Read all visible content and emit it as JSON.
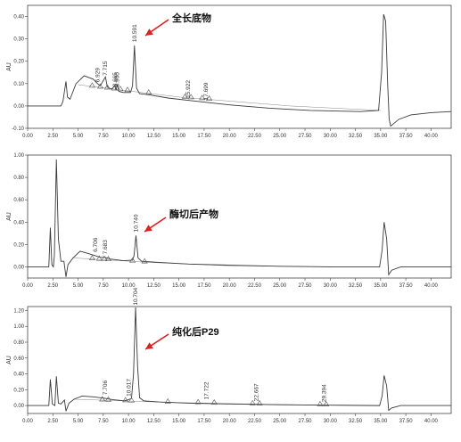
{
  "chart_data": [
    {
      "type": "line",
      "ylabel": "AU",
      "annotation": "全长底物",
      "xlim": [
        0,
        42
      ],
      "ylim": [
        -0.1,
        0.45
      ],
      "xticks": [
        "0.00",
        "2.50",
        "5.00",
        "7.50",
        "10.00",
        "12.50",
        "15.00",
        "17.50",
        "20.00",
        "22.50",
        "25.00",
        "27.50",
        "30.00",
        "32.50",
        "35.00",
        "37.50",
        "40.00"
      ],
      "yticks": [
        "-0.10",
        "0.00",
        "0.10",
        "0.20",
        "0.30",
        "0.40"
      ],
      "peak_labels": [
        {
          "text": "6.929",
          "x": 6.929,
          "y": 0.09
        },
        {
          "text": "7.715",
          "x": 7.715,
          "y": 0.12
        },
        {
          "text": "8.665",
          "x": 8.665,
          "y": 0.07
        },
        {
          "text": "8.900",
          "x": 8.9,
          "y": 0.07
        },
        {
          "text": "10.591",
          "x": 10.591,
          "y": 0.27
        },
        {
          "text": "15.922",
          "x": 15.922,
          "y": 0.02
        },
        {
          "text": "17.699",
          "x": 17.699,
          "y": 0.01
        }
      ],
      "triangles": [
        6.4,
        7.2,
        7.9,
        8.6,
        9.2,
        9.9,
        12.0,
        15.6,
        16.2,
        17.3,
        18.0
      ],
      "trace": [
        [
          0,
          0
        ],
        [
          3.3,
          0
        ],
        [
          3.5,
          0.02
        ],
        [
          3.8,
          0.11
        ],
        [
          3.95,
          0.04
        ],
        [
          4.2,
          0.03
        ],
        [
          4.8,
          0.1
        ],
        [
          5.6,
          0.135
        ],
        [
          6.5,
          0.12
        ],
        [
          6.929,
          0.1
        ],
        [
          7.2,
          0.09
        ],
        [
          7.715,
          0.13
        ],
        [
          7.9,
          0.085
        ],
        [
          8.3,
          0.075
        ],
        [
          8.665,
          0.09
        ],
        [
          8.75,
          0.07
        ],
        [
          8.9,
          0.095
        ],
        [
          9.05,
          0.065
        ],
        [
          9.5,
          0.06
        ],
        [
          10.2,
          0.06
        ],
        [
          10.4,
          0.09
        ],
        [
          10.591,
          0.27
        ],
        [
          10.8,
          0.08
        ],
        [
          11.1,
          0.055
        ],
        [
          12,
          0.05
        ],
        [
          14,
          0.035
        ],
        [
          16,
          0.025
        ],
        [
          18,
          0.015
        ],
        [
          20,
          0.005
        ],
        [
          24,
          -0.01
        ],
        [
          28,
          -0.02
        ],
        [
          33,
          -0.025
        ],
        [
          34.8,
          -0.02
        ],
        [
          35.1,
          0.15
        ],
        [
          35.3,
          0.41
        ],
        [
          35.5,
          0.38
        ],
        [
          35.7,
          0.1
        ],
        [
          35.85,
          -0.06
        ],
        [
          36.0,
          -0.09
        ],
        [
          36.8,
          -0.06
        ],
        [
          38,
          -0.04
        ],
        [
          40,
          -0.03
        ],
        [
          42,
          -0.025
        ]
      ],
      "baseline": [
        [
          5.0,
          0.095
        ],
        [
          15,
          0.04
        ],
        [
          26,
          0.0
        ],
        [
          35,
          -0.02
        ]
      ]
    },
    {
      "type": "line",
      "ylabel": "AU",
      "annotation": "酶切后产物",
      "xlim": [
        0,
        42
      ],
      "ylim": [
        -0.1,
        1.0
      ],
      "xticks": [
        "0.00",
        "2.50",
        "5.00",
        "7.50",
        "10.00",
        "12.50",
        "15.00",
        "17.50",
        "20.00",
        "22.50",
        "25.00",
        "27.50",
        "30.00",
        "32.50",
        "35.00",
        "37.50",
        "40.00"
      ],
      "yticks": [
        "0.00",
        "0.20",
        "0.40",
        "0.60",
        "0.80",
        "1.00"
      ],
      "peak_labels": [
        {
          "text": "6.706",
          "x": 6.706,
          "y": 0.1
        },
        {
          "text": "7.683",
          "x": 7.683,
          "y": 0.08
        },
        {
          "text": "10.740",
          "x": 10.74,
          "y": 0.28
        }
      ],
      "triangles": [
        6.4,
        7.1,
        7.6,
        8.0,
        10.4,
        11.6
      ],
      "trace": [
        [
          0,
          0
        ],
        [
          2.1,
          0
        ],
        [
          2.25,
          0.35
        ],
        [
          2.4,
          0.02
        ],
        [
          2.55,
          0
        ],
        [
          2.65,
          0.1
        ],
        [
          2.85,
          0.96
        ],
        [
          3.05,
          0.25
        ],
        [
          3.3,
          0.05
        ],
        [
          3.6,
          0.05
        ],
        [
          3.8,
          -0.09
        ],
        [
          4.0,
          0.02
        ],
        [
          4.5,
          0.08
        ],
        [
          5.2,
          0.14
        ],
        [
          6.0,
          0.12
        ],
        [
          6.706,
          0.1
        ],
        [
          7.2,
          0.085
        ],
        [
          7.683,
          0.085
        ],
        [
          8.2,
          0.07
        ],
        [
          9.5,
          0.055
        ],
        [
          10.4,
          0.06
        ],
        [
          10.55,
          0.1
        ],
        [
          10.74,
          0.28
        ],
        [
          10.95,
          0.08
        ],
        [
          11.3,
          0.05
        ],
        [
          13,
          0.04
        ],
        [
          16,
          0.025
        ],
        [
          20,
          0.015
        ],
        [
          25,
          0.005
        ],
        [
          30,
          0.0
        ],
        [
          34.9,
          0.0
        ],
        [
          35.15,
          0.15
        ],
        [
          35.35,
          0.4
        ],
        [
          35.6,
          0.25
        ],
        [
          35.8,
          -0.07
        ],
        [
          36.1,
          -0.03
        ],
        [
          37,
          0.0
        ],
        [
          42,
          0.0
        ]
      ],
      "baseline": [
        [
          4.5,
          0.08
        ],
        [
          12,
          0.04
        ],
        [
          20,
          0.01
        ],
        [
          30,
          0.0
        ]
      ]
    },
    {
      "type": "line",
      "ylabel": "AU",
      "annotation": "纯化后P29",
      "xlim": [
        0,
        42
      ],
      "ylim": [
        -0.1,
        1.25
      ],
      "xticks": [
        "0.00",
        "2.50",
        "5.00",
        "7.50",
        "10.00",
        "12.50",
        "15.00",
        "17.50",
        "20.00",
        "22.50",
        "25.00",
        "27.50",
        "30.00",
        "32.50",
        "35.00",
        "37.50",
        "40.00"
      ],
      "yticks": [
        "0.00",
        "0.20",
        "0.40",
        "0.60",
        "0.80",
        "1.00",
        "1.20"
      ],
      "peak_labels": [
        {
          "text": "7.706",
          "x": 7.706,
          "y": 0.09
        },
        {
          "text": "10.017",
          "x": 10.017,
          "y": 0.07
        },
        {
          "text": "10.704",
          "x": 10.704,
          "y": 1.22
        },
        {
          "text": "17.722",
          "x": 17.722,
          "y": 0.03
        },
        {
          "text": "22.667",
          "x": 22.667,
          "y": 0.01
        },
        {
          "text": "29.394",
          "x": 29.394,
          "y": 0.0
        }
      ],
      "triangles": [
        7.4,
        8.0,
        9.7,
        10.3,
        13.9,
        16.9,
        18.5,
        22.3,
        23.0,
        29.0,
        29.6
      ],
      "trace": [
        [
          0,
          0
        ],
        [
          2.1,
          0
        ],
        [
          2.25,
          0.33
        ],
        [
          2.45,
          0.02
        ],
        [
          2.7,
          0.0
        ],
        [
          2.85,
          0.37
        ],
        [
          3.05,
          0.03
        ],
        [
          3.3,
          0.02
        ],
        [
          3.65,
          0.07
        ],
        [
          3.8,
          -0.07
        ],
        [
          4.1,
          0.03
        ],
        [
          4.6,
          0.08
        ],
        [
          5.4,
          0.12
        ],
        [
          6.5,
          0.11
        ],
        [
          7.706,
          0.09
        ],
        [
          8.4,
          0.075
        ],
        [
          9.6,
          0.06
        ],
        [
          10.017,
          0.075
        ],
        [
          10.3,
          0.09
        ],
        [
          10.5,
          0.4
        ],
        [
          10.704,
          1.24
        ],
        [
          10.9,
          0.5
        ],
        [
          11.1,
          0.1
        ],
        [
          11.5,
          0.06
        ],
        [
          13,
          0.045
        ],
        [
          16,
          0.03
        ],
        [
          20,
          0.02
        ],
        [
          25,
          0.01
        ],
        [
          30,
          0.005
        ],
        [
          34.9,
          0.0
        ],
        [
          35.15,
          0.12
        ],
        [
          35.35,
          0.38
        ],
        [
          35.6,
          0.25
        ],
        [
          35.8,
          -0.06
        ],
        [
          36.1,
          -0.03
        ],
        [
          37,
          0.0
        ],
        [
          42,
          0.0
        ]
      ],
      "baseline": [
        [
          4.6,
          0.08
        ],
        [
          14,
          0.04
        ],
        [
          24,
          0.015
        ],
        [
          30,
          0.005
        ]
      ]
    }
  ]
}
